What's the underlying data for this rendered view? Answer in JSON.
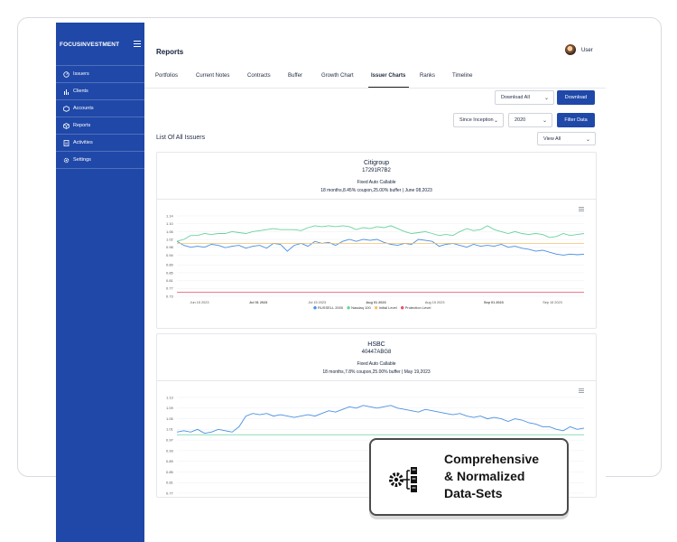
{
  "sidebar": {
    "brand": "FOCUSINVESTMENT",
    "items": [
      {
        "label": "Issuers",
        "icon": "dashboard-icon"
      },
      {
        "label": "Clients",
        "icon": "bar-chart-icon"
      },
      {
        "label": "Accounts",
        "icon": "accounts-icon"
      },
      {
        "label": "Reports",
        "icon": "reports-icon"
      },
      {
        "label": "Activities",
        "icon": "activity-file-icon"
      },
      {
        "label": "Settings",
        "icon": "gear-icon"
      }
    ]
  },
  "header": {
    "title": "Reports",
    "user": "User"
  },
  "tabs": [
    "Portfolios",
    "Current Notes",
    "Contracts",
    "Buffer",
    "Growth Chart",
    "Issuer Charts",
    "Ranks",
    "Timeline"
  ],
  "active_tab": "Issuer Charts",
  "controls": {
    "download_select": "Download All",
    "download_button": "Download",
    "period_select": "Since Inception",
    "year_select": "2020",
    "filter_button": "Filter Data",
    "view_select": "View All"
  },
  "section_title": "List Of All Issuers",
  "cards": [
    {
      "name": "Citigroup",
      "code": "17291R7B2",
      "type": "Fixed Auto Callable",
      "terms": "18 months,8.45% coupon,25.00% buffer | June 08,2023"
    },
    {
      "name": "HSBC",
      "code": "40447ABG8",
      "type": "Fixed Auto Callable",
      "terms": "18 months,7.8% coupon,25.00% buffer | May 19,2023"
    }
  ],
  "chart_data": [
    {
      "type": "line",
      "ylim": [
        0.73,
        1.14
      ],
      "y_ticks": [
        1.14,
        1.1,
        1.06,
        1.02,
        0.98,
        0.94,
        0.89,
        0.85,
        0.81,
        0.77,
        0.73
      ],
      "x_ticks": [
        "Jun 15 2023",
        "Jul 01 2023",
        "Jul 15 2023",
        "Aug 01 2023",
        "Aug 15 2023",
        "Sep 01 2023",
        "Sep 15 2023"
      ],
      "legend": [
        "RUSSELL 2000",
        "Nasdaq 100",
        "Initial Level",
        "Protection Level"
      ],
      "series": [
        {
          "name": "RUSSELL 2000",
          "color": "#4a90e2",
          "values": [
            1.01,
            0.99,
            0.98,
            0.985,
            0.98,
            0.995,
            0.99,
            0.978,
            0.985,
            0.99,
            0.975,
            0.985,
            0.99,
            0.975,
            1.0,
            0.995,
            0.96,
            0.99,
            1.0,
            0.985,
            1.01,
            1.0,
            1.005,
            0.99,
            1.01,
            1.02,
            1.01,
            1.02,
            1.015,
            1.02,
            1.005,
            0.995,
            0.99,
            1.0,
            0.995,
            1.02,
            1.015,
            1.01,
            0.985,
            0.995,
            1.0,
            0.99,
            0.98,
            0.995,
            0.985,
            0.99,
            0.985,
            0.995,
            0.98,
            0.985,
            0.975,
            0.97,
            0.96,
            0.965,
            0.955,
            0.945,
            0.94,
            0.945,
            0.942,
            0.945
          ]
        },
        {
          "name": "Nasdaq 100",
          "color": "#69d29e",
          "values": [
            1.01,
            1.02,
            1.04,
            1.04,
            1.05,
            1.045,
            1.05,
            1.05,
            1.06,
            1.055,
            1.05,
            1.06,
            1.065,
            1.07,
            1.075,
            1.07,
            1.07,
            1.07,
            1.065,
            1.08,
            1.09,
            1.085,
            1.09,
            1.085,
            1.09,
            1.085,
            1.07,
            1.08,
            1.075,
            1.085,
            1.08,
            1.09,
            1.075,
            1.06,
            1.05,
            1.055,
            1.06,
            1.05,
            1.04,
            1.045,
            1.04,
            1.06,
            1.075,
            1.065,
            1.07,
            1.09,
            1.07,
            1.06,
            1.05,
            1.06,
            1.05,
            1.045,
            1.05,
            1.045,
            1.03,
            1.035,
            1.05,
            1.04,
            1.045,
            1.05
          ]
        },
        {
          "name": "Initial Level",
          "color": "#f5c06b",
          "values": [
            1.0
          ]
        },
        {
          "name": "Protection Level",
          "color": "#e4506b",
          "values": [
            0.75
          ]
        }
      ]
    },
    {
      "type": "line",
      "ylim": [
        0.77,
        1.13
      ],
      "y_ticks": [
        1.13,
        1.09,
        1.05,
        1.01,
        0.97,
        0.93,
        0.89,
        0.85,
        0.81,
        0.77
      ],
      "legend": [],
      "series": [
        {
          "name": "",
          "color": "#4a90e2",
          "values": [
            1.0,
            1.005,
            1.0,
            1.01,
            0.995,
            1.0,
            1.01,
            1.005,
            1.0,
            1.02,
            1.06,
            1.07,
            1.065,
            1.07,
            1.06,
            1.065,
            1.06,
            1.055,
            1.06,
            1.065,
            1.06,
            1.07,
            1.08,
            1.075,
            1.085,
            1.095,
            1.09,
            1.1,
            1.095,
            1.09,
            1.095,
            1.1,
            1.09,
            1.085,
            1.08,
            1.075,
            1.085,
            1.08,
            1.075,
            1.07,
            1.065,
            1.07,
            1.06,
            1.055,
            1.06,
            1.05,
            1.055,
            1.05,
            1.04,
            1.05,
            1.045,
            1.035,
            1.03,
            1.02,
            1.02,
            1.01,
            1.005,
            1.02,
            1.01,
            1.015
          ]
        },
        {
          "name": "",
          "color": "#69d29e",
          "values": [
            0.99
          ]
        }
      ]
    }
  ],
  "overlay": {
    "lines": [
      "Comprehensive",
      "& Normalized",
      "Data-Sets"
    ],
    "icon": "gear-data-icon"
  }
}
